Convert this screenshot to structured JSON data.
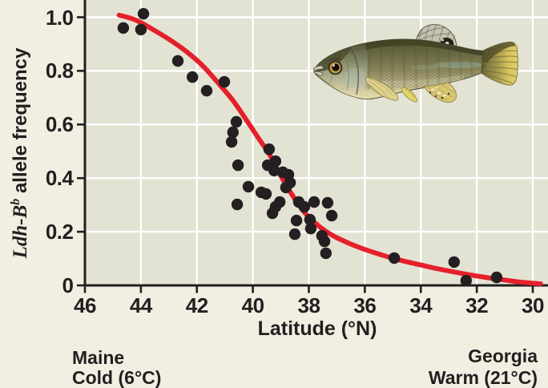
{
  "figure": {
    "background_color": "#f2eee2",
    "plot_background_color": "#e2e3d3",
    "grid_color": "#ffffff",
    "axis_color": "#231f20",
    "text_color": "#231f20"
  },
  "chart_data": {
    "type": "scatter",
    "xlabel": "Latitude (°N)",
    "ylabel_gene": "Ldh-B",
    "ylabel_gene_superscript": "b",
    "ylabel_rest": " allele frequency",
    "x_axis": {
      "min": 46,
      "max": 30,
      "reversed": true,
      "tick_values": [
        46,
        44,
        42,
        40,
        38,
        36,
        34,
        32,
        30
      ],
      "tick_labels": [
        "46",
        "44",
        "42",
        "40",
        "38",
        "36",
        "34",
        "32",
        "30"
      ]
    },
    "y_axis": {
      "min": 0,
      "max": 1.0,
      "tick_values": [
        1.0,
        0.8,
        0.6,
        0.4,
        0.2,
        0
      ],
      "tick_labels": [
        "1.0",
        "0.8",
        "0.6",
        "0.4",
        "0.2",
        "0"
      ]
    },
    "point_color": "#241f20",
    "points": [
      [
        44.63,
        0.96
      ],
      [
        43.91,
        1.013
      ],
      [
        44.0,
        0.954
      ],
      [
        42.68,
        0.837
      ],
      [
        42.16,
        0.777
      ],
      [
        41.02,
        0.759
      ],
      [
        41.65,
        0.726
      ],
      [
        40.59,
        0.61
      ],
      [
        40.71,
        0.571
      ],
      [
        40.76,
        0.535
      ],
      [
        40.53,
        0.448
      ],
      [
        40.16,
        0.368
      ],
      [
        40.56,
        0.302
      ],
      [
        39.42,
        0.508
      ],
      [
        39.47,
        0.448
      ],
      [
        39.19,
        0.463
      ],
      [
        39.24,
        0.428
      ],
      [
        38.93,
        0.422
      ],
      [
        38.73,
        0.413
      ],
      [
        38.67,
        0.383
      ],
      [
        38.82,
        0.365
      ],
      [
        39.7,
        0.347
      ],
      [
        39.53,
        0.341
      ],
      [
        39.04,
        0.311
      ],
      [
        39.19,
        0.293
      ],
      [
        39.3,
        0.269
      ],
      [
        38.36,
        0.311
      ],
      [
        38.16,
        0.293
      ],
      [
        37.81,
        0.311
      ],
      [
        37.33,
        0.308
      ],
      [
        37.18,
        0.26
      ],
      [
        37.96,
        0.245
      ],
      [
        37.93,
        0.212
      ],
      [
        38.44,
        0.242
      ],
      [
        38.5,
        0.191
      ],
      [
        37.53,
        0.185
      ],
      [
        37.44,
        0.164
      ],
      [
        37.39,
        0.12
      ],
      [
        34.95,
        0.102
      ],
      [
        32.81,
        0.087
      ],
      [
        32.38,
        0.018
      ],
      [
        31.29,
        0.03
      ]
    ],
    "trend_curve": {
      "color": "#e5202b",
      "points": [
        [
          44.78,
          1.008
        ],
        [
          44.2,
          0.99
        ],
        [
          43.6,
          0.956
        ],
        [
          43.0,
          0.918
        ],
        [
          42.4,
          0.874
        ],
        [
          41.8,
          0.82
        ],
        [
          41.2,
          0.75
        ],
        [
          40.7,
          0.688
        ],
        [
          40.2,
          0.612
        ],
        [
          39.8,
          0.549
        ],
        [
          39.4,
          0.487
        ],
        [
          39.0,
          0.408
        ],
        [
          38.6,
          0.338
        ],
        [
          38.2,
          0.278
        ],
        [
          37.8,
          0.235
        ],
        [
          37.4,
          0.202
        ],
        [
          37.0,
          0.178
        ],
        [
          36.5,
          0.154
        ],
        [
          36.0,
          0.134
        ],
        [
          35.5,
          0.117
        ],
        [
          35.0,
          0.101
        ],
        [
          34.5,
          0.088
        ],
        [
          34.0,
          0.076
        ],
        [
          33.5,
          0.064
        ],
        [
          33.0,
          0.054
        ],
        [
          32.5,
          0.044
        ],
        [
          32.0,
          0.035
        ],
        [
          31.5,
          0.027
        ],
        [
          31.0,
          0.02
        ],
        [
          30.5,
          0.013
        ],
        [
          30.0,
          0.008
        ],
        [
          29.72,
          0.006
        ]
      ]
    },
    "annotations": {
      "left_region": "Maine",
      "left_climate": "Cold (6°C)",
      "right_region": "Georgia",
      "right_climate": "Warm (21°C)"
    }
  }
}
